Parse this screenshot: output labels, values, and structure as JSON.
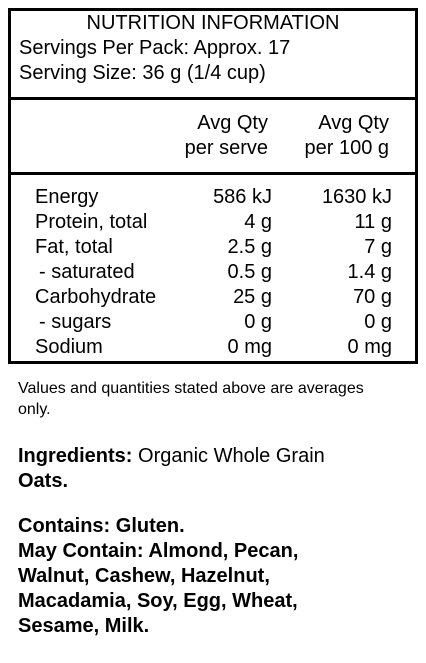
{
  "panel": {
    "title": "NUTRITION INFORMATION",
    "servings": "Servings Per Pack: Approx. 17",
    "serving_size": "Serving Size: 36 g (1/4 cup)",
    "columns": [
      [
        "Avg Qty",
        "per serve"
      ],
      [
        "Avg Qty",
        "per 100 g"
      ]
    ],
    "rows": [
      [
        "Energy",
        "586 kJ",
        "1630 kJ"
      ],
      [
        "Protein, total",
        "4 g",
        "11 g"
      ],
      [
        "Fat, total",
        "2.5 g",
        "7 g"
      ],
      [
        "- saturated",
        "0.5 g",
        "1.4 g"
      ],
      [
        "Carbohydrate",
        "25 g",
        "70 g"
      ],
      [
        "- sugars",
        "0 g",
        "0 g"
      ],
      [
        "Sodium",
        "0 mg",
        "0 mg"
      ]
    ]
  },
  "note": "Values and quantities stated above are averages only.",
  "ingredients": {
    "label": "Ingredients:",
    "text": "Organic Whole Grain",
    "bold_text": "Oats."
  },
  "contains": "Contains: Gluten.",
  "may_contain": "May Contain: Almond, Pecan, Walnut, Cashew, Hazelnut, Macadamia, Soy, Egg, Wheat, Sesame, Milk."
}
